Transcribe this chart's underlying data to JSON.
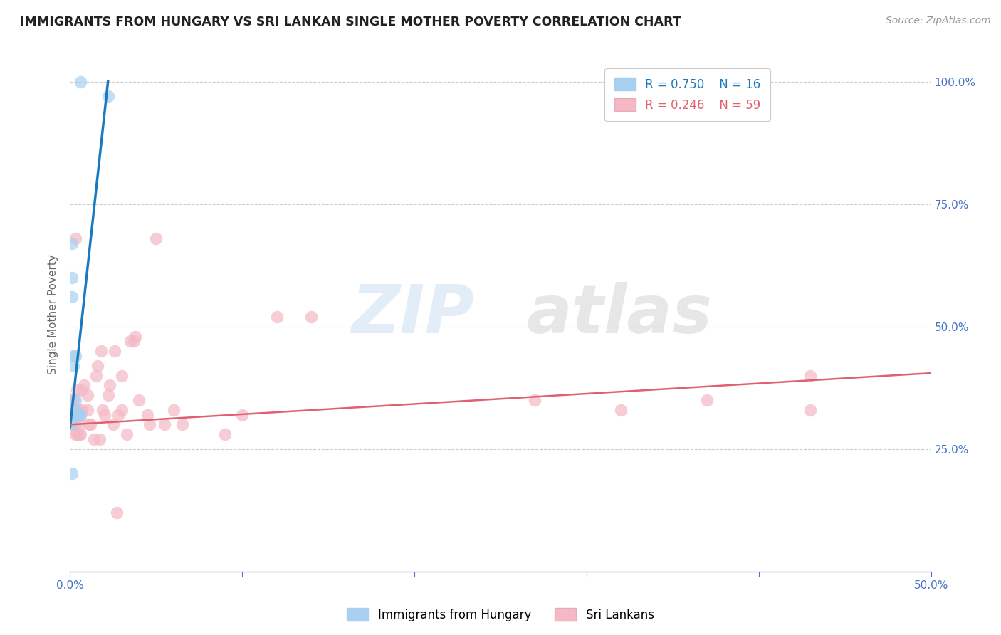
{
  "title": "IMMIGRANTS FROM HUNGARY VS SRI LANKAN SINGLE MOTHER POVERTY CORRELATION CHART",
  "source": "Source: ZipAtlas.com",
  "ylabel": "Single Mother Poverty",
  "xlim": [
    0,
    0.5
  ],
  "ylim": [
    0,
    1.05
  ],
  "legend_blue_r": "R = 0.750",
  "legend_blue_n": "N = 16",
  "legend_pink_r": "R = 0.246",
  "legend_pink_n": "N = 59",
  "legend_label_blue": "Immigrants from Hungary",
  "legend_label_pink": "Sri Lankans",
  "blue_color": "#a8d0f0",
  "pink_color": "#f5b8c4",
  "blue_line_color": "#1a7abf",
  "pink_line_color": "#e06070",
  "blue_scatter": {
    "x": [
      0.001,
      0.001,
      0.001,
      0.002,
      0.002,
      0.003,
      0.003,
      0.003,
      0.004,
      0.005,
      0.006,
      0.006,
      0.001,
      0.001,
      0.001,
      0.022
    ],
    "y": [
      0.67,
      0.6,
      0.56,
      0.44,
      0.42,
      0.35,
      0.44,
      0.33,
      0.32,
      0.32,
      0.32,
      1.0,
      0.3,
      0.32,
      0.2,
      0.97
    ]
  },
  "pink_scatter": {
    "x": [
      0.001,
      0.001,
      0.002,
      0.002,
      0.002,
      0.003,
      0.003,
      0.003,
      0.004,
      0.004,
      0.004,
      0.005,
      0.005,
      0.005,
      0.006,
      0.006,
      0.007,
      0.007,
      0.008,
      0.01,
      0.01,
      0.011,
      0.012,
      0.014,
      0.015,
      0.016,
      0.017,
      0.018,
      0.019,
      0.02,
      0.022,
      0.023,
      0.025,
      0.026,
      0.027,
      0.028,
      0.03,
      0.03,
      0.033,
      0.035,
      0.037,
      0.038,
      0.04,
      0.045,
      0.046,
      0.05,
      0.055,
      0.06,
      0.065,
      0.09,
      0.1,
      0.12,
      0.14,
      0.27,
      0.32,
      0.37,
      0.43,
      0.43,
      0.003
    ],
    "y": [
      0.33,
      0.35,
      0.3,
      0.32,
      0.35,
      0.28,
      0.3,
      0.33,
      0.28,
      0.32,
      0.37,
      0.28,
      0.3,
      0.33,
      0.28,
      0.32,
      0.33,
      0.37,
      0.38,
      0.36,
      0.33,
      0.3,
      0.3,
      0.27,
      0.4,
      0.42,
      0.27,
      0.45,
      0.33,
      0.32,
      0.36,
      0.38,
      0.3,
      0.45,
      0.12,
      0.32,
      0.4,
      0.33,
      0.28,
      0.47,
      0.47,
      0.48,
      0.35,
      0.32,
      0.3,
      0.68,
      0.3,
      0.33,
      0.3,
      0.28,
      0.32,
      0.52,
      0.52,
      0.35,
      0.33,
      0.35,
      0.4,
      0.33,
      0.68
    ]
  },
  "blue_line_x": [
    0.0,
    0.022
  ],
  "blue_line_y": [
    0.295,
    1.0
  ],
  "pink_line_x": [
    0.0,
    0.5
  ],
  "pink_line_y": [
    0.3,
    0.405
  ],
  "watermark_zip": "ZIP",
  "watermark_atlas": "atlas",
  "background_color": "#ffffff",
  "grid_color": "#cccccc",
  "yticks": [
    0.25,
    0.5,
    0.75,
    1.0
  ],
  "ytick_labels": [
    "25.0%",
    "50.0%",
    "75.0%",
    "100.0%"
  ],
  "xtick_labels_show": [
    "0.0%",
    "50.0%"
  ]
}
